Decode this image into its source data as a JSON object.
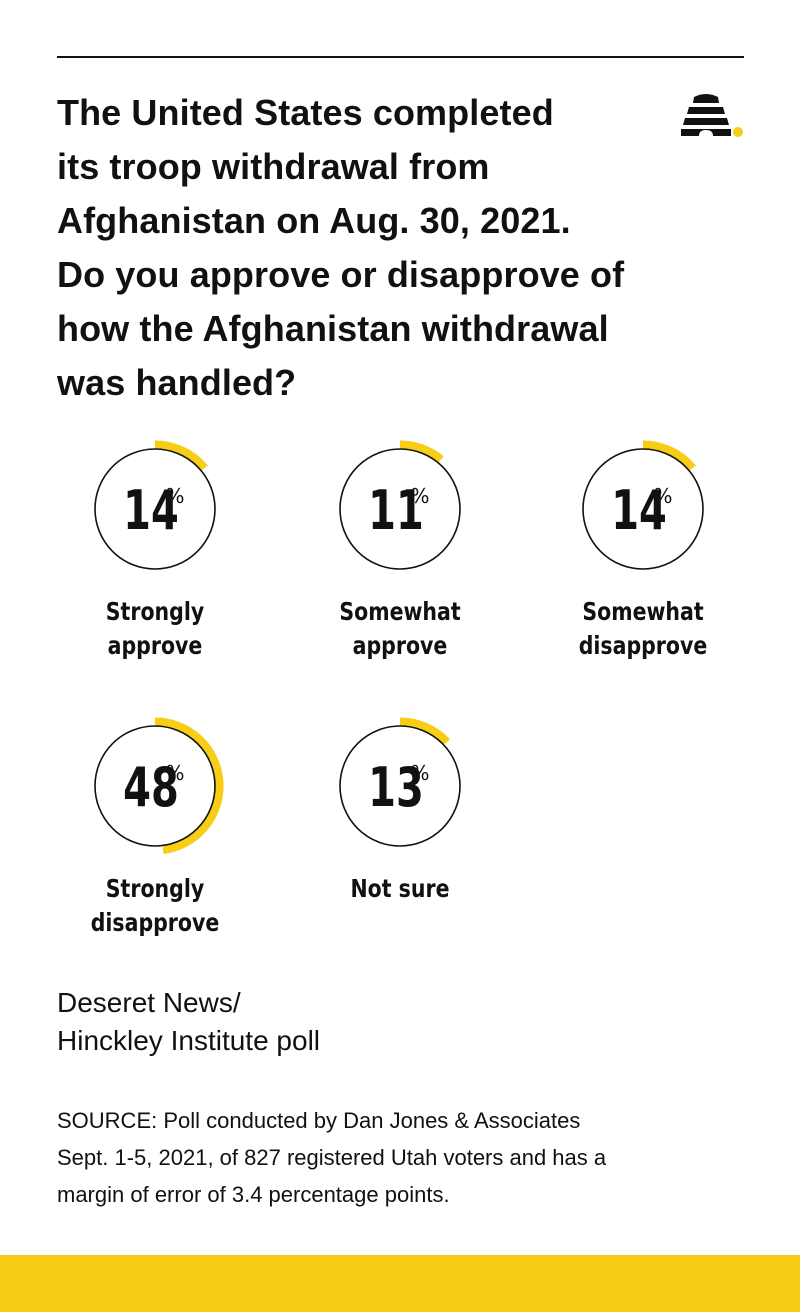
{
  "headline": "The United States completed\nits troop withdrawal from\nAfghanistan on Aug. 30, 2021.\nDo you approve or disapprove of\nhow the Afghanistan withdrawal\nwas handled?",
  "credit": "Deseret News/\nHinckley Institute poll",
  "source": "SOURCE: Poll conducted by Dan Jones & Associates\nSept. 1-5, 2021, of 827 registered Utah voters and has a\nmargin of error of 3.4 percentage points.",
  "logo_icon": "beehive-icon",
  "colors": {
    "accent": "#f7cd16",
    "ink": "#111111",
    "background": "#ffffff"
  },
  "chart_data": {
    "type": "donut",
    "title": "",
    "unit": "%",
    "categories": [
      "Strongly\napprove",
      "Somewhat\napprove",
      "Somewhat\ndisapprove",
      "Strongly\ndisapprove",
      "Not sure"
    ],
    "values": [
      14,
      11,
      14,
      48,
      13
    ]
  }
}
